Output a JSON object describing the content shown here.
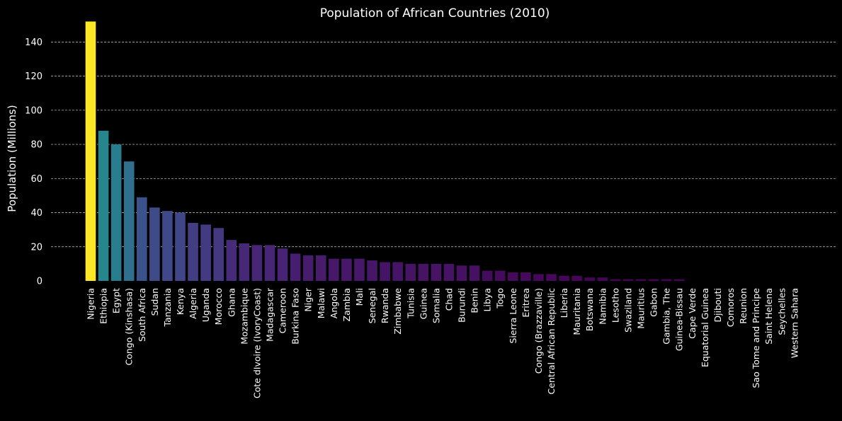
{
  "chart_data": {
    "type": "bar",
    "title": "Population of African Countries (2010)",
    "xlabel": "",
    "ylabel": "Population (Millions)",
    "ylim": [
      0,
      153
    ],
    "yticks": [
      0,
      20,
      40,
      60,
      80,
      100,
      120,
      140
    ],
    "grid": "y-dashed",
    "colormap": "viridis",
    "colors": {
      "background": "#000000",
      "text": "#ffffff",
      "grid": "#d0d0d0"
    },
    "categories": [
      "Nigeria",
      "Ethiopia",
      "Egypt",
      "Congo (Kinshasa)",
      "South Africa",
      "Sudan",
      "Tanzania",
      "Kenya",
      "Algeria",
      "Uganda",
      "Morocco",
      "Ghana",
      "Mozambique",
      "Cote dIvoire (IvoryCoast)",
      "Madagascar",
      "Cameroon",
      "Burkina Faso",
      "Niger",
      "Malawi",
      "Angola",
      "Zambia",
      "Mali",
      "Senegal",
      "Rwanda",
      "Zimbabwe",
      "Tunisia",
      "Guinea",
      "Somalia",
      "Chad",
      "Burundi",
      "Benin",
      "Libya",
      "Togo",
      "Sierra Leone",
      "Eritrea",
      "Congo (Brazzaville)",
      "Central African Republic",
      "Liberia",
      "Mauritania",
      "Botswana",
      "Namibia",
      "Lesotho",
      "Swaziland",
      "Mauritius",
      "Gabon",
      "Gambia, The",
      "Guinea-Bissau",
      "Cape Verde",
      "Equatorial Guinea",
      "Djibouti",
      "Comoros",
      "Reunion",
      "Sao Tome and Principe",
      "Saint Helena",
      "Seychelles",
      "Western Sahara"
    ],
    "values": [
      152,
      88,
      80,
      70,
      49,
      43,
      41,
      40,
      34,
      33,
      31,
      24,
      22,
      21,
      21,
      19,
      16,
      15,
      15,
      13,
      13,
      13,
      12,
      11,
      11,
      10,
      10,
      10,
      10,
      9,
      9,
      6,
      6,
      5,
      5,
      4,
      4,
      3,
      3,
      2,
      2,
      1,
      1,
      1,
      1,
      1,
      1,
      0,
      0,
      0,
      0,
      0,
      0,
      0,
      0,
      0
    ]
  }
}
